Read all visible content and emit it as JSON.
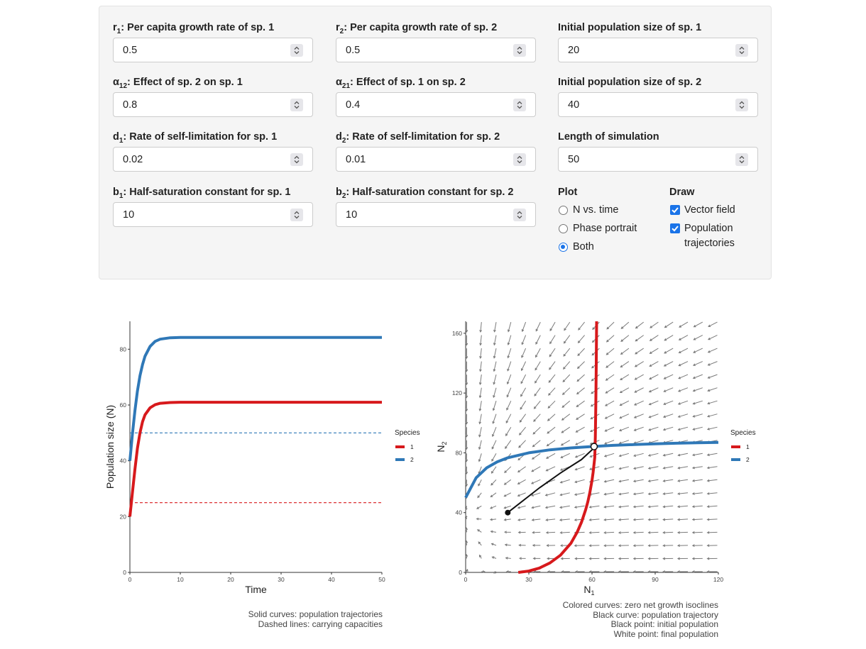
{
  "controls": {
    "r1": {
      "label_pre": "r",
      "sub": "1",
      "label_post": ": Per capita growth rate of sp. 1",
      "value": "0.5"
    },
    "r2": {
      "label_pre": "r",
      "sub": "2",
      "label_post": ": Per capita growth rate of sp. 2",
      "value": "0.5"
    },
    "n1_init": {
      "label": "Initial population size of sp. 1",
      "value": "20"
    },
    "a12": {
      "label_pre": "α",
      "sub": "12",
      "label_post": ": Effect of sp. 2 on sp. 1",
      "value": "0.8"
    },
    "a21": {
      "label_pre": "α",
      "sub": "21",
      "label_post": ": Effect of sp. 1 on sp. 2",
      "value": "0.4"
    },
    "n2_init": {
      "label": "Initial population size of sp. 2",
      "value": "40"
    },
    "d1": {
      "label_pre": "d",
      "sub": "1",
      "label_post": ": Rate of self-limitation for sp. 1",
      "value": "0.02"
    },
    "d2": {
      "label_pre": "d",
      "sub": "2",
      "label_post": ": Rate of self-limitation for sp. 2",
      "value": "0.01"
    },
    "length": {
      "label": "Length of simulation",
      "value": "50"
    },
    "b1": {
      "label_pre": "b",
      "sub": "1",
      "label_post": ": Half-saturation constant for sp. 1",
      "value": "10"
    },
    "b2": {
      "label_pre": "b",
      "sub": "2",
      "label_post": ": Half-saturation constant for sp. 2",
      "value": "10"
    },
    "plot": {
      "title": "Plot",
      "options": [
        "N vs. time",
        "Phase portrait",
        "Both"
      ],
      "selected": "Both"
    },
    "draw": {
      "title": "Draw",
      "options": [
        "Vector field",
        "Population",
        "trajectories"
      ],
      "checked": [
        true,
        true
      ]
    }
  },
  "colors": {
    "sp1": "#d7191c",
    "sp2": "#2f78b7",
    "accent": "#1a73e8"
  },
  "chart_data": [
    {
      "type": "line",
      "xlabel": "Time",
      "ylabel": "Population size (N)",
      "xlim": [
        0,
        50
      ],
      "ylim": [
        0,
        90
      ],
      "xticks": [
        "0",
        "10",
        "20",
        "30",
        "40",
        "50"
      ],
      "yticks": [
        "0",
        "20",
        "40",
        "60",
        "80"
      ],
      "legend": {
        "title": "Species",
        "entries": [
          "1",
          "2"
        ],
        "position": "right"
      },
      "series": [
        {
          "name": "1",
          "x": [
            0,
            0.5,
            1,
            1.5,
            2,
            2.5,
            3,
            4,
            5,
            6,
            8,
            10,
            20,
            30,
            40,
            50
          ],
          "y": [
            20,
            28.5,
            37,
            44.5,
            50,
            54,
            56.5,
            59,
            60.1,
            60.6,
            60.9,
            61,
            61,
            61,
            61,
            61
          ]
        },
        {
          "name": "2",
          "x": [
            0,
            0.5,
            1,
            1.5,
            2,
            2.5,
            3,
            4,
            5,
            6,
            8,
            10,
            20,
            30,
            40,
            50
          ],
          "y": [
            40,
            49.5,
            58,
            65,
            70.5,
            74.5,
            77.5,
            81,
            82.8,
            83.6,
            84.1,
            84.2,
            84.2,
            84.2,
            84.2,
            84.2
          ]
        }
      ],
      "carrying_capacities": [
        {
          "species": "1",
          "value": 25
        },
        {
          "species": "2",
          "value": 50
        }
      ],
      "caption": [
        "Solid curves: population trajectories",
        "Dashed lines: carrying capacities"
      ]
    },
    {
      "type": "line",
      "xlabel": "N1",
      "ylabel": "N2",
      "xlim": [
        0,
        120
      ],
      "ylim": [
        0,
        168
      ],
      "xticks": [
        "0",
        "30",
        "60",
        "90",
        "120"
      ],
      "yticks": [
        "0",
        "40",
        "80",
        "120",
        "160"
      ],
      "legend": {
        "title": "Species",
        "entries": [
          "1",
          "2"
        ],
        "position": "right"
      },
      "isoclines": [
        {
          "name": "1",
          "x": [
            25,
            30,
            35,
            40,
            45,
            50,
            53,
            55,
            57,
            58,
            59,
            60,
            60.5,
            61,
            61.3,
            61.6,
            61.8,
            62,
            62.2
          ],
          "y": [
            0,
            0.9,
            2.9,
            6.3,
            11.5,
            19.5,
            27,
            33.6,
            42,
            47.2,
            53.5,
            61.5,
            66.7,
            73,
            77,
            91,
            110,
            135,
            168
          ]
        },
        {
          "name": "2",
          "x": [
            0,
            5,
            10,
            15,
            20,
            30,
            40,
            50,
            61,
            70,
            80,
            90,
            100,
            110,
            120
          ],
          "y": [
            50,
            63.3,
            70,
            74,
            76.7,
            80,
            82,
            83.3,
            84.3,
            85,
            85.5,
            86,
            86.4,
            86.7,
            87
          ]
        }
      ],
      "trajectory": {
        "x": [
          20,
          25,
          30,
          35,
          40,
          45,
          50,
          55,
          60,
          61
        ],
        "y": [
          40,
          45.5,
          51,
          56.5,
          61.5,
          66.5,
          71,
          75.5,
          82,
          84.2
        ]
      },
      "initial_point": {
        "x": 20,
        "y": 40
      },
      "final_point": {
        "x": 61,
        "y": 84.2
      },
      "caption": [
        "Colored curves: zero net growth isoclines",
        "Black curve: population trajectory",
        "Black point: initial population",
        "White point: final population"
      ]
    }
  ]
}
